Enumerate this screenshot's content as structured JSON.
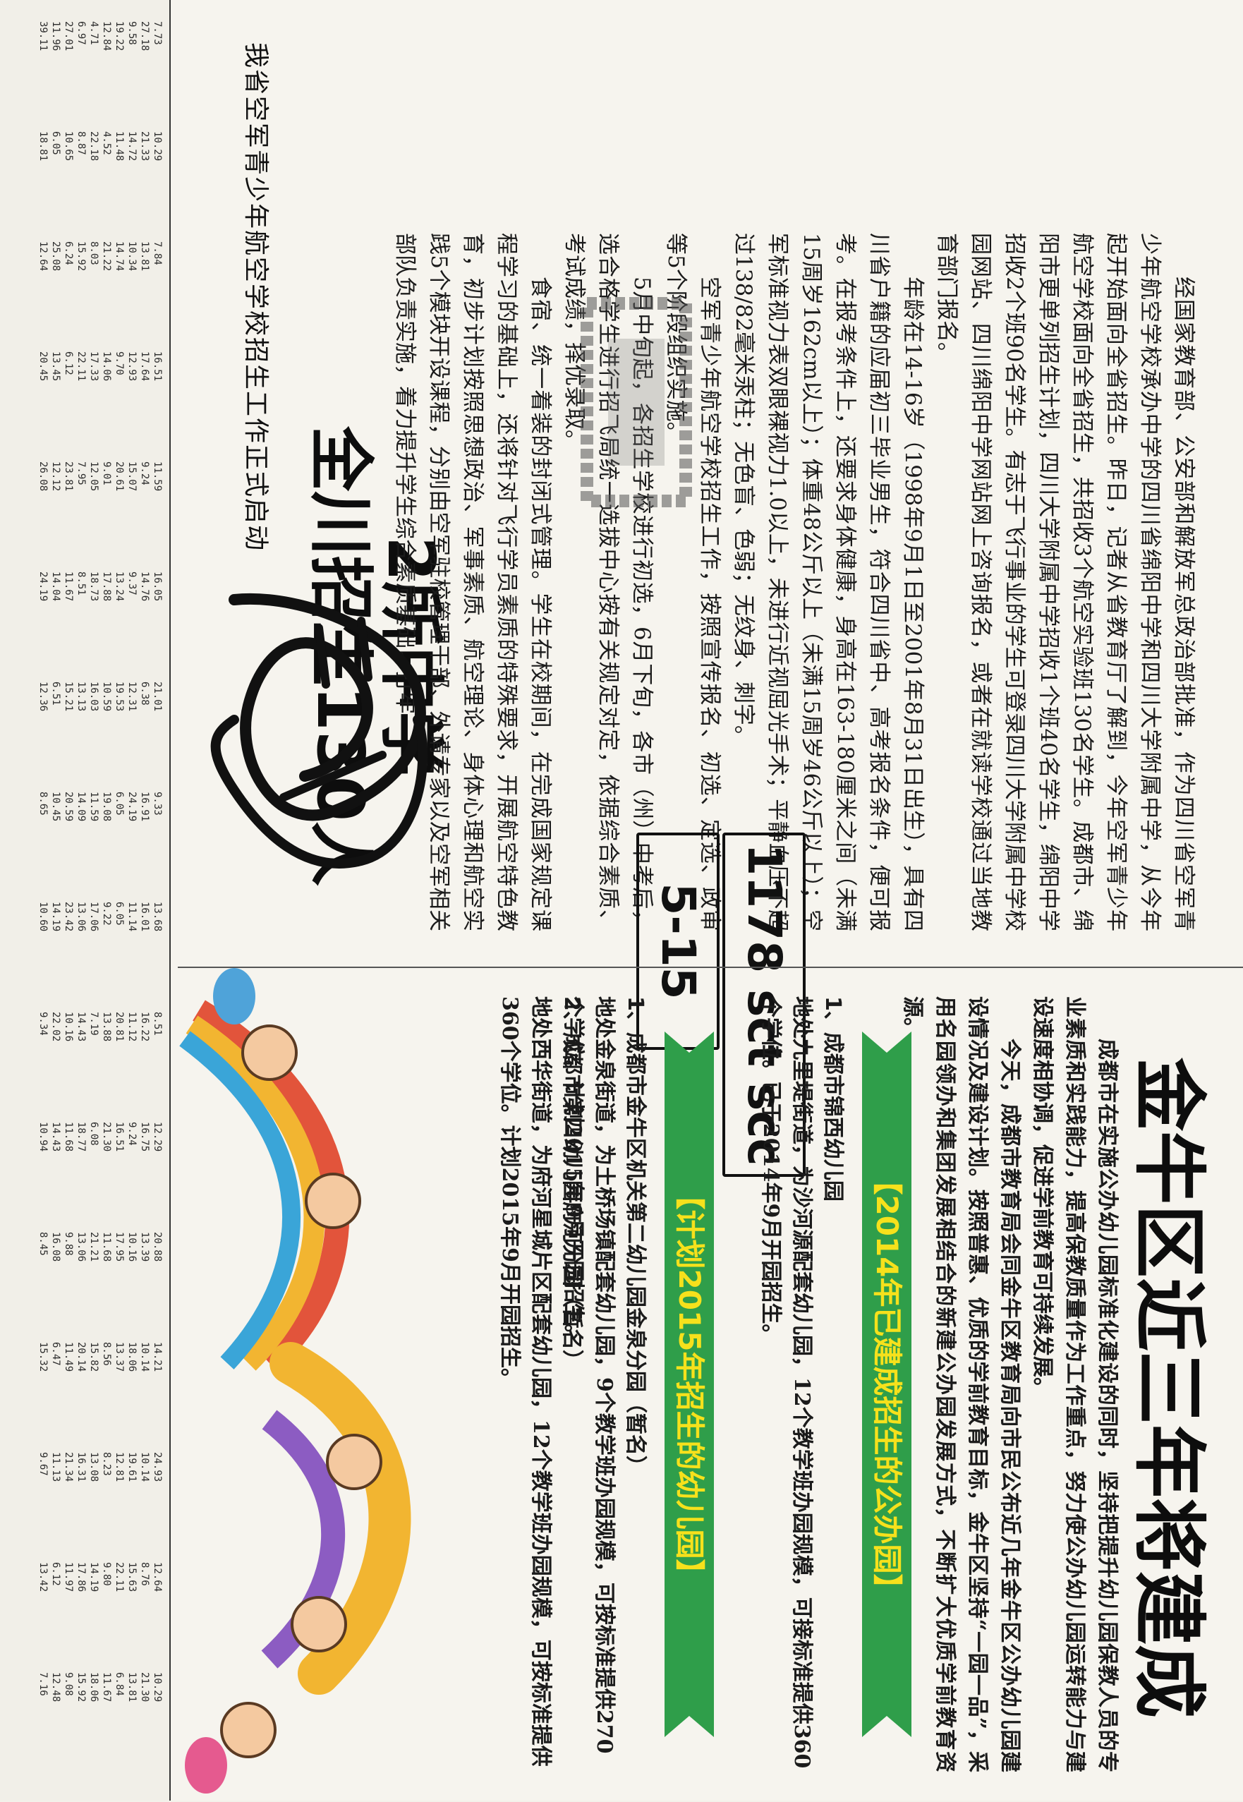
{
  "article1": {
    "kicker": "我省空军青少年航空学校招生工作正式启动",
    "headline_line1": "2所中学",
    "headline_line2": "全川招生130人",
    "paragraphs": [
      "经国家教育部、公安部和解放军总政治部批准，作为四川省空军青少年航空学校承办中学的四川省绵阳中学和四川大学附属中学，从今年起开始面向全省招生。昨日，记者从省教育厅了解到，今年空军青少年航空学校面向全省招生，共招收3个航空实验班130名学生。成都市、绵阳市更单列招生计划，四川大学附属中学招收1个班40名学生，绵阳中学招收2个班90名学生。有志于飞行事业的学生可登录四川大学附属中学校园网站、四川绵阳中学网站网上咨询报名，或者在就读学校通过当地教育部门报名。",
      "年龄在14-16岁（1998年9月1日至2001年8月31日出生），具有四川省户籍的应届初三毕业男生，符合四川省中、高考报名条件，便可报考。在报考条件上，还要求身体健康，身高在163-180厘米之间（未满15周岁162cm以上）；体重48公斤以上（未满15周岁46公斤以上）；空军标准视力表双眼裸视力1.0以上，未进行近视屈光手术；平静血压不超过138/82毫米汞柱；无色盲、色弱；无纹身、刺字。",
      "空军青少年航空学校招生工作，按照宣传报名、初选、定选、政审等5个阶段组织实施。",
      "5月中旬起，各招生学校进行初选，6月下旬，各市（州）中考后，选合格学生进行招飞局统一选拔中心按有关规定对定，依据综合素质、考试成绩，择优录取。",
      "食宿、统一着装的封闭式管理。学生在校期间，在完成国家规定课程学习的基础上，还将针对飞行学员素质的特殊要求，开展航空特色教育，初步计划按照思想政治、军事素质、航空理论、身体心理和航空实践5个模块开设课程，分别由空军驻校管理干部、外请专家以及空军相关部队负责实施，着力提升学生综合素质基础，打牢"
    ]
  },
  "stamp": {
    "id_text": "1178 sct scc",
    "date_text": "5-15"
  },
  "article2": {
    "headline": "金牛区近三年将建成",
    "intro": [
      "成都市在实施公办幼儿园标准化建设的同时，坚持把提升幼儿园保教人员的专业素质和实践能力，提高保教质量作为工作重点，努力使公办幼儿园运转能力与建设速度相协调，促进学前教育可持续发展。",
      "今天，成都市教育局会同金牛区教育局向市民公布近几年金牛区公办幼儿园建设情况及建设计划。按照普惠、优质的学前教育目标，金牛区坚持“一园一品”，采用名园领办和集团发展相结合的新建公办园发展方式，不断扩大优质学前教育资源。"
    ],
    "banner_2014": "【2014年已建成招生的公办园】",
    "banner_2015": "【计划2015年招生的幼儿园】",
    "entries": [
      {
        "name": "1、成都市锦西幼儿园",
        "desc": "地处九里堤街道，为沙河源配套幼儿园，12个教学班办园规模，可接标准提供360个学位。已于2014年9月开园招生。"
      },
      {
        "name": "1、成都市金牛区机关第二幼儿园金泉分园（暂名）",
        "desc": "地处金泉街道，为土桥场镇配套幼儿园，9个教学班办园规模，可按标准提供270个学位。计划2015年9月开园招生。"
      },
      {
        "name": "2、成都市第四幼儿园府河分园（暂名）",
        "desc": "地处西华街道，为府河星城片区配套幼儿园，12个教学班办园规模，可按标准提供360个学位。计划2015年9月开园招生。"
      }
    ]
  },
  "table": {
    "columns": [
      [
        "7.73",
        "27.18",
        "9.58",
        "19.22",
        "12.84",
        "4.71",
        "6.97",
        "27.01",
        "11.96",
        "39.11"
      ],
      [
        "10.29",
        "21.33",
        "14.72",
        "11.48",
        "4.52",
        "22.18",
        "8.87",
        "10.65",
        "6.05",
        "18.81"
      ],
      [
        "7.84",
        "13.81",
        "10.34",
        "14.74",
        "21.22",
        "8.03",
        "15.92",
        "6.24",
        "25.08",
        "12.64"
      ],
      [
        "16.51",
        "17.64",
        "12.93",
        "9.70",
        "14.06",
        "17.33",
        "22.11",
        "6.12",
        "13.45",
        "20.45"
      ],
      [
        "11.59",
        "9.24",
        "15.07",
        "20.61",
        "9.01",
        "12.05",
        "7.95",
        "23.81",
        "12.12",
        "26.08"
      ],
      [
        "16.05",
        "14.76",
        "9.37",
        "13.24",
        "17.88",
        "18.73",
        "8.51",
        "11.67",
        "14.04",
        "24.19"
      ],
      [
        "21.01",
        "6.38",
        "12.31",
        "19.53",
        "10.59",
        "16.03",
        "13.13",
        "15.21",
        "6.51",
        "12.36"
      ],
      [
        "9.33",
        "16.91",
        "24.19",
        "6.05",
        "19.08",
        "11.59",
        "14.09",
        "20.59",
        "10.45",
        "8.65"
      ],
      [
        "13.68",
        "16.01",
        "11.14",
        "6.05",
        "9.22",
        "17.06",
        "13.06",
        "23.42",
        "14.19",
        "10.60"
      ],
      [
        "8.51",
        "16.22",
        "11.12",
        "20.81",
        "13.88",
        "7.19",
        "14.43",
        "10.16",
        "22.02",
        "9.34"
      ],
      [
        "12.29",
        "16.75",
        "9.24",
        "16.51",
        "21.30",
        "6.08",
        "18.77",
        "11.68",
        "14.43",
        "10.94"
      ],
      [
        "20.88",
        "13.39",
        "10.16",
        "17.95",
        "11.68",
        "21.21",
        "13.06",
        "9.88",
        "16.08",
        "8.45"
      ],
      [
        "14.21",
        "10.14",
        "18.06",
        "13.37",
        "8.56",
        "15.82",
        "20.14",
        "11.49",
        "6.47",
        "15.32"
      ],
      [
        "24.93",
        "10.14",
        "19.61",
        "12.81",
        "8.23",
        "13.08",
        "16.31",
        "21.34",
        "11.13",
        "9.67"
      ],
      [
        "12.64",
        "8.76",
        "15.63",
        "22.11",
        "9.80",
        "14.19",
        "17.86",
        "11.97",
        "6.12",
        "13.42"
      ],
      [
        "10.29",
        "21.30",
        "13.81",
        "6.84",
        "11.67",
        "18.06",
        "15.92",
        "9.08",
        "12.48",
        "7.16"
      ]
    ]
  },
  "colors": {
    "banner_bg": "#2f9e4a",
    "banner_text": "#f6e11c",
    "ink": "#1b1b1b",
    "paper": "#f6f4ee"
  },
  "icons": {
    "scribble": "handwriting-scribble-icon",
    "smudge": "ink-smudge-icon",
    "illustration": "children-musicians-illustration-icon"
  }
}
